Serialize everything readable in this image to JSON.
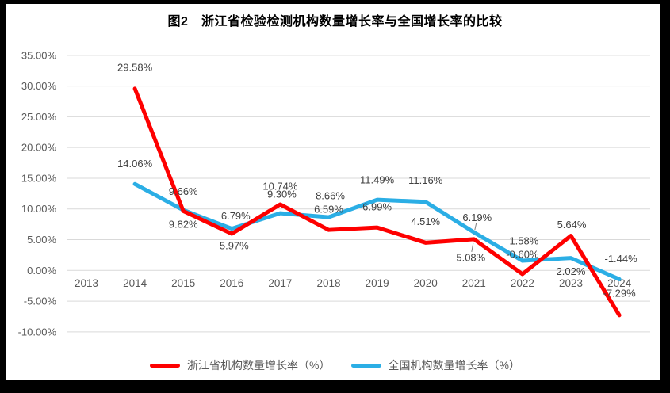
{
  "chart_data": {
    "type": "line",
    "title": "图2　浙江省检验检测机构数量增长率与全国增长率的比较",
    "categories": [
      "2013",
      "2014",
      "2015",
      "2016",
      "2017",
      "2018",
      "2019",
      "2020",
      "2021",
      "2022",
      "2023",
      "2024"
    ],
    "series": [
      {
        "name": "浙江省机构数量增长率（%）",
        "color": "#FE0000",
        "values": [
          null,
          29.58,
          9.66,
          5.97,
          10.74,
          6.59,
          6.99,
          4.51,
          5.08,
          -0.6,
          5.64,
          -7.29
        ],
        "labels": [
          "",
          "29.58%",
          "9.66%",
          "5.97%",
          "10.74%",
          "6.59%",
          "6.99%",
          "4.51%",
          "5.08%",
          "-0.60%",
          "5.64%",
          "-7.29%"
        ]
      },
      {
        "name": "全国机构数量增长率（%）",
        "color": "#2BAEE5",
        "values": [
          null,
          14.06,
          9.82,
          6.79,
          9.3,
          8.66,
          11.49,
          11.16,
          6.19,
          1.58,
          2.02,
          -1.44
        ],
        "labels": [
          "",
          "14.06%",
          "9.82%",
          "6.79%",
          "9.30%",
          "8.66%",
          "11.49%",
          "11.16%",
          "6.19%",
          "1.58%",
          "2.02%",
          "-1.44%"
        ]
      }
    ],
    "ylim": [
      -10,
      35
    ],
    "yticks": [
      {
        "value": 35,
        "label": "35.00%"
      },
      {
        "value": 30,
        "label": "30.00%"
      },
      {
        "value": 25,
        "label": "25.00%"
      },
      {
        "value": 20,
        "label": "20.00%"
      },
      {
        "value": 15,
        "label": "15.00%"
      },
      {
        "value": 10,
        "label": "10.00%"
      },
      {
        "value": 5,
        "label": "5.00%"
      },
      {
        "value": 0,
        "label": "0.00%"
      },
      {
        "value": -5,
        "label": "-5.00%"
      },
      {
        "value": -10,
        "label": "-10.00%"
      }
    ],
    "grid": "horizontal",
    "legend_position": "bottom",
    "colors": {
      "grid": "#D9D9D9",
      "axis_text": "#595959",
      "data_label_text": "#404040",
      "title_text": "#000000",
      "leader_line": "#7F7F7F",
      "background": "#FFFFFF",
      "frame": "#000000"
    }
  }
}
